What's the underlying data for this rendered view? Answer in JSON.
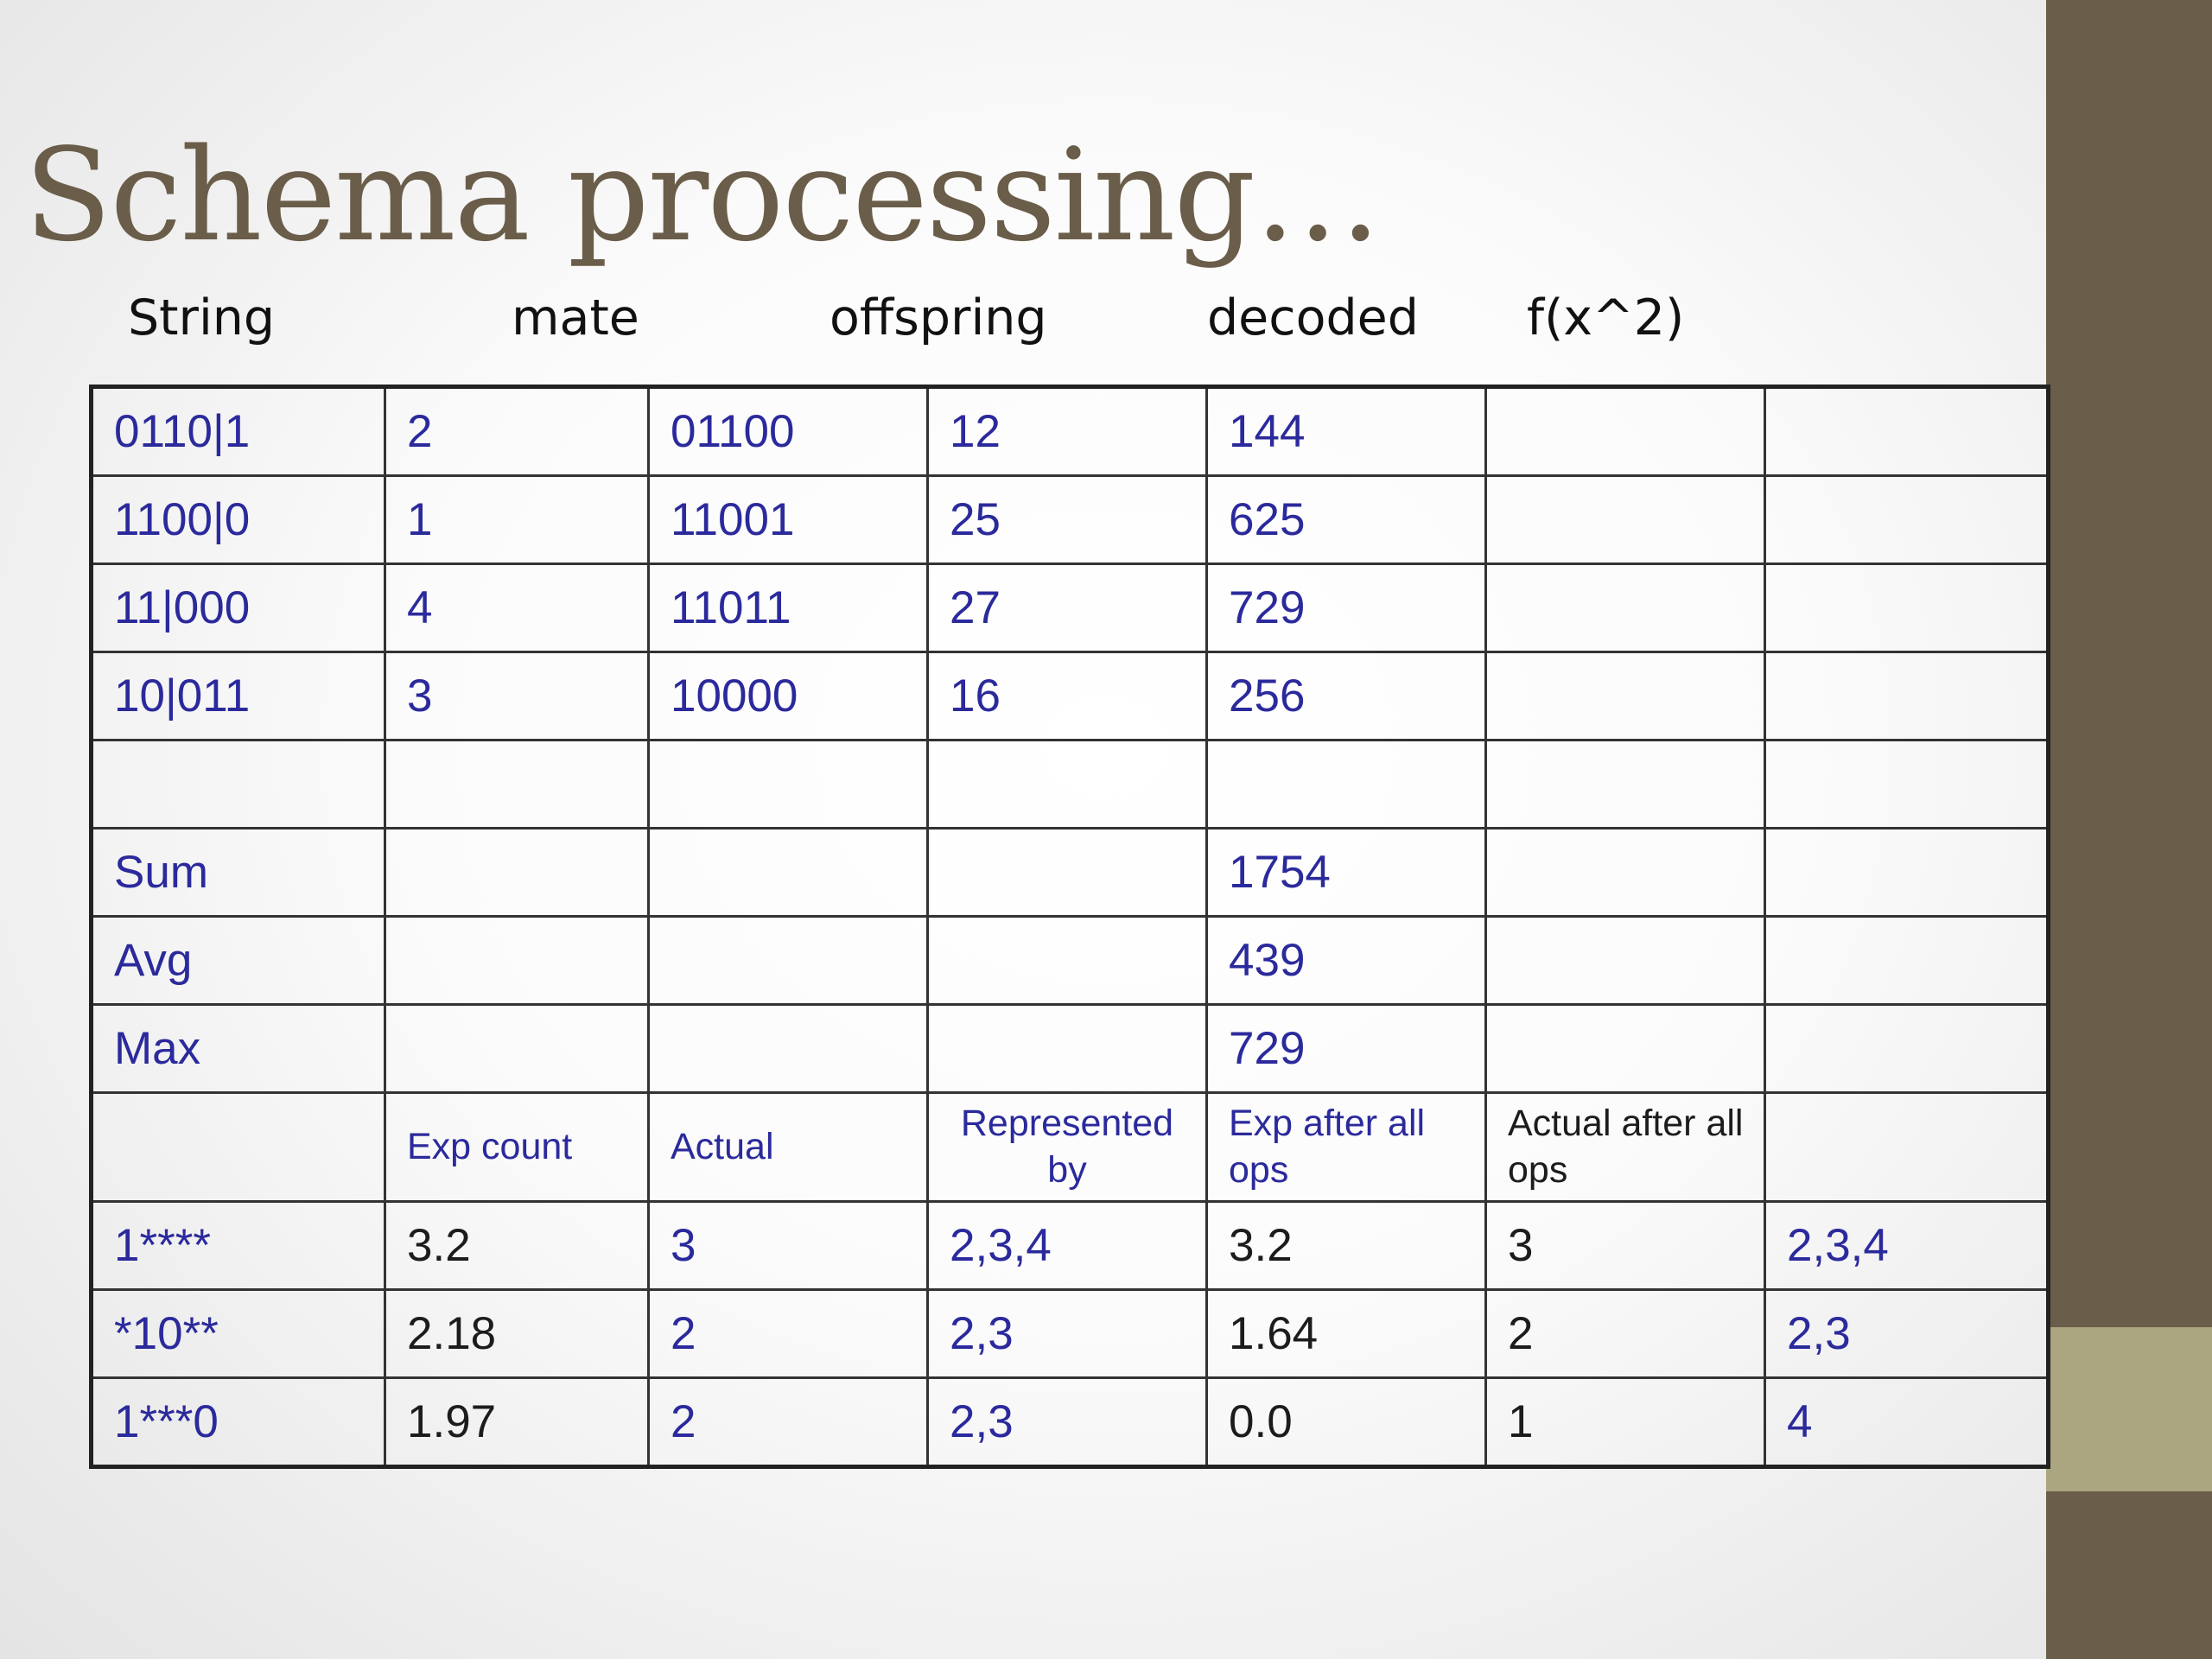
{
  "slide": {
    "title": "Schema processing…",
    "column_labels": [
      "String",
      "mate",
      "offspring",
      "decoded",
      "f(x^2)"
    ]
  },
  "table": {
    "rows": [
      [
        "0110|1",
        "2",
        "01100",
        "12",
        "144",
        "",
        ""
      ],
      [
        "1100|0",
        "1",
        "11001",
        "25",
        "625",
        "",
        ""
      ],
      [
        "11|000",
        "4",
        "11011",
        "27",
        "729",
        "",
        ""
      ],
      [
        "10|011",
        "3",
        "10000",
        "16",
        "256",
        "",
        ""
      ],
      [
        "",
        "",
        "",
        "",
        "",
        "",
        ""
      ],
      [
        "Sum",
        "",
        "",
        "",
        "1754",
        "",
        ""
      ],
      [
        "Avg",
        "",
        "",
        "",
        "439",
        "",
        ""
      ],
      [
        "Max",
        "",
        "",
        "",
        "729",
        "",
        ""
      ]
    ],
    "schema_header": [
      "",
      "Exp count",
      "Actual",
      "Represented by",
      "Exp after all ops",
      "Actual after all ops",
      ""
    ],
    "schema_rows": [
      [
        "1****",
        "3.2",
        "3",
        "2,3,4",
        "3.2",
        "3",
        "2,3,4"
      ],
      [
        "*10**",
        "2.18",
        "2",
        "2,3",
        "1.64",
        "2",
        "2,3"
      ],
      [
        "1***0",
        "1.97",
        "2",
        "2,3",
        "0.0",
        "1",
        "4"
      ]
    ]
  },
  "colors": {
    "title": "#6a5d49",
    "table_text": "#2b2a9c",
    "dark_text": "#1c1c1c",
    "sidebar": "#6a5d49",
    "sidebar_accent": "#aba580"
  }
}
